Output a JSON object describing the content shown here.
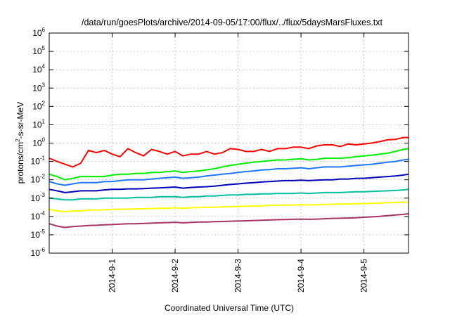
{
  "chart_data": {
    "type": "line",
    "title": "/data/run/goesPlots/archive/2014-09-05/17:00/flux/../flux/5daysMarsFluxes.txt",
    "xlabel": "Coordinated Universal Time (UTC)",
    "ylabel": {
      "base": "protons/cm",
      "sup": "2",
      "rest": "-s-sr-MeV"
    },
    "y_scale": "log",
    "ylim": [
      1e-06,
      1000000.0
    ],
    "xlim": [
      "2014-08-31T00:00",
      "2014-09-05T17:00"
    ],
    "grid": true,
    "legend": "none",
    "y_ticks": [
      {
        "base": "10",
        "exp": "-6"
      },
      {
        "base": "10",
        "exp": "-5"
      },
      {
        "base": "10",
        "exp": "-4"
      },
      {
        "base": "10",
        "exp": "-3"
      },
      {
        "base": "10",
        "exp": "-2"
      },
      {
        "base": "10",
        "exp": "-1"
      },
      {
        "base": "10",
        "exp": "0"
      },
      {
        "base": "10",
        "exp": "1"
      },
      {
        "base": "10",
        "exp": "2"
      },
      {
        "base": "10",
        "exp": "3"
      },
      {
        "base": "10",
        "exp": "4"
      },
      {
        "base": "10",
        "exp": "5"
      },
      {
        "base": "10",
        "exp": "6"
      }
    ],
    "x_ticks": [
      "2014-9-1",
      "2014-9-2",
      "2014-9-3",
      "2014-9-4",
      "2014-9-5"
    ],
    "x": [
      "2014-08-31T00:00",
      "2014-08-31T03:00",
      "2014-08-31T06:00",
      "2014-08-31T09:00",
      "2014-08-31T12:00",
      "2014-08-31T15:00",
      "2014-08-31T18:00",
      "2014-08-31T21:00",
      "2014-09-01T00:00",
      "2014-09-01T03:00",
      "2014-09-01T06:00",
      "2014-09-01T09:00",
      "2014-09-01T12:00",
      "2014-09-01T15:00",
      "2014-09-01T18:00",
      "2014-09-01T21:00",
      "2014-09-02T00:00",
      "2014-09-02T03:00",
      "2014-09-02T06:00",
      "2014-09-02T09:00",
      "2014-09-02T12:00",
      "2014-09-02T15:00",
      "2014-09-02T18:00",
      "2014-09-02T21:00",
      "2014-09-03T00:00",
      "2014-09-03T03:00",
      "2014-09-03T06:00",
      "2014-09-03T09:00",
      "2014-09-03T12:00",
      "2014-09-03T15:00",
      "2014-09-03T18:00",
      "2014-09-03T21:00",
      "2014-09-04T00:00",
      "2014-09-04T03:00",
      "2014-09-04T06:00",
      "2014-09-04T09:00",
      "2014-09-04T12:00",
      "2014-09-04T15:00",
      "2014-09-04T18:00",
      "2014-09-04T21:00",
      "2014-09-05T00:00",
      "2014-09-05T03:00",
      "2014-09-05T06:00",
      "2014-09-05T09:00",
      "2014-09-05T12:00",
      "2014-09-05T15:00",
      "2014-09-05T17:00"
    ],
    "series": [
      {
        "color": "#ff0000",
        "values": [
          0.15,
          0.1,
          0.07,
          0.05,
          0.08,
          0.4,
          0.3,
          0.4,
          0.25,
          0.18,
          0.5,
          0.3,
          0.2,
          0.45,
          0.35,
          0.25,
          0.35,
          0.2,
          0.25,
          0.25,
          0.35,
          0.25,
          0.3,
          0.5,
          0.45,
          0.35,
          0.35,
          0.45,
          0.35,
          0.5,
          0.5,
          0.6,
          0.6,
          0.5,
          0.7,
          0.8,
          0.8,
          0.65,
          0.9,
          0.8,
          0.9,
          1.0,
          1.2,
          1.5,
          1.6,
          2.0,
          2.0
        ]
      },
      {
        "color": "#00ee00",
        "values": [
          0.02,
          0.015,
          0.01,
          0.012,
          0.015,
          0.015,
          0.015,
          0.015,
          0.018,
          0.02,
          0.02,
          0.022,
          0.022,
          0.025,
          0.025,
          0.028,
          0.03,
          0.025,
          0.028,
          0.03,
          0.035,
          0.04,
          0.05,
          0.06,
          0.07,
          0.08,
          0.09,
          0.1,
          0.11,
          0.12,
          0.12,
          0.13,
          0.14,
          0.12,
          0.13,
          0.15,
          0.15,
          0.15,
          0.16,
          0.18,
          0.2,
          0.22,
          0.25,
          0.28,
          0.35,
          0.45,
          0.5
        ]
      },
      {
        "color": "#1e78ff",
        "values": [
          0.008,
          0.006,
          0.005,
          0.006,
          0.007,
          0.007,
          0.007,
          0.008,
          0.008,
          0.009,
          0.01,
          0.01,
          0.01,
          0.011,
          0.012,
          0.013,
          0.014,
          0.012,
          0.013,
          0.014,
          0.016,
          0.018,
          0.02,
          0.022,
          0.025,
          0.028,
          0.03,
          0.034,
          0.036,
          0.04,
          0.04,
          0.042,
          0.045,
          0.04,
          0.045,
          0.05,
          0.05,
          0.05,
          0.055,
          0.06,
          0.065,
          0.07,
          0.08,
          0.09,
          0.1,
          0.12,
          0.13
        ]
      },
      {
        "color": "#0000bb",
        "values": [
          0.003,
          0.0025,
          0.002,
          0.0022,
          0.0025,
          0.0025,
          0.0025,
          0.0028,
          0.003,
          0.003,
          0.0032,
          0.0032,
          0.0033,
          0.0035,
          0.0036,
          0.0038,
          0.004,
          0.0035,
          0.0038,
          0.004,
          0.0042,
          0.0045,
          0.005,
          0.0055,
          0.006,
          0.0065,
          0.007,
          0.0075,
          0.008,
          0.0085,
          0.009,
          0.009,
          0.0095,
          0.009,
          0.0095,
          0.01,
          0.01,
          0.011,
          0.011,
          0.012,
          0.012,
          0.013,
          0.014,
          0.015,
          0.016,
          0.018,
          0.02
        ]
      },
      {
        "color": "#00c0a0",
        "values": [
          0.001,
          0.0009,
          0.0008,
          0.0008,
          0.0009,
          0.0009,
          0.0009,
          0.001,
          0.001,
          0.001,
          0.001,
          0.0011,
          0.0011,
          0.0011,
          0.0012,
          0.0012,
          0.0012,
          0.0011,
          0.0012,
          0.0012,
          0.0013,
          0.0013,
          0.0014,
          0.0015,
          0.0015,
          0.0016,
          0.0016,
          0.0017,
          0.0017,
          0.0018,
          0.0018,
          0.0018,
          0.0019,
          0.0018,
          0.0019,
          0.002,
          0.002,
          0.002,
          0.0021,
          0.0022,
          0.0022,
          0.0023,
          0.0024,
          0.0025,
          0.0026,
          0.0028,
          0.003
        ]
      },
      {
        "color": "#ffff00",
        "values": [
          0.00025,
          0.0002,
          0.00018,
          0.0002,
          0.0002,
          0.00022,
          0.00022,
          0.00023,
          0.00024,
          0.00025,
          0.00025,
          0.00026,
          0.00026,
          0.00027,
          0.00028,
          0.00028,
          0.0003,
          0.00028,
          0.0003,
          0.0003,
          0.00032,
          0.00032,
          0.00033,
          0.00034,
          0.00035,
          0.00036,
          0.00037,
          0.00038,
          0.0004,
          0.0004,
          0.00042,
          0.00042,
          0.00044,
          0.00042,
          0.00044,
          0.00045,
          0.00046,
          0.00047,
          0.00048,
          0.0005,
          0.0005,
          0.00052,
          0.00054,
          0.00056,
          0.00058,
          0.0006,
          0.0006
        ]
      },
      {
        "color": "#aa3366",
        "values": [
          4e-05,
          3e-05,
          2.5e-05,
          2.8e-05,
          3e-05,
          3.2e-05,
          3.3e-05,
          3.5e-05,
          3.6e-05,
          3.8e-05,
          4e-05,
          4e-05,
          4.2e-05,
          4.3e-05,
          4.5e-05,
          4.6e-05,
          4.8e-05,
          4.5e-05,
          4.7e-05,
          5e-05,
          5e-05,
          5.2e-05,
          5.3e-05,
          5.5e-05,
          5.6e-05,
          5.8e-05,
          6e-05,
          6.2e-05,
          6.4e-05,
          6.6e-05,
          6.8e-05,
          7e-05,
          7.2e-05,
          7e-05,
          7.2e-05,
          7.5e-05,
          7.8e-05,
          8e-05,
          8.2e-05,
          8.5e-05,
          9e-05,
          9.5e-05,
          0.0001,
          0.00011,
          0.00012,
          0.00013,
          0.00014
        ]
      }
    ]
  }
}
